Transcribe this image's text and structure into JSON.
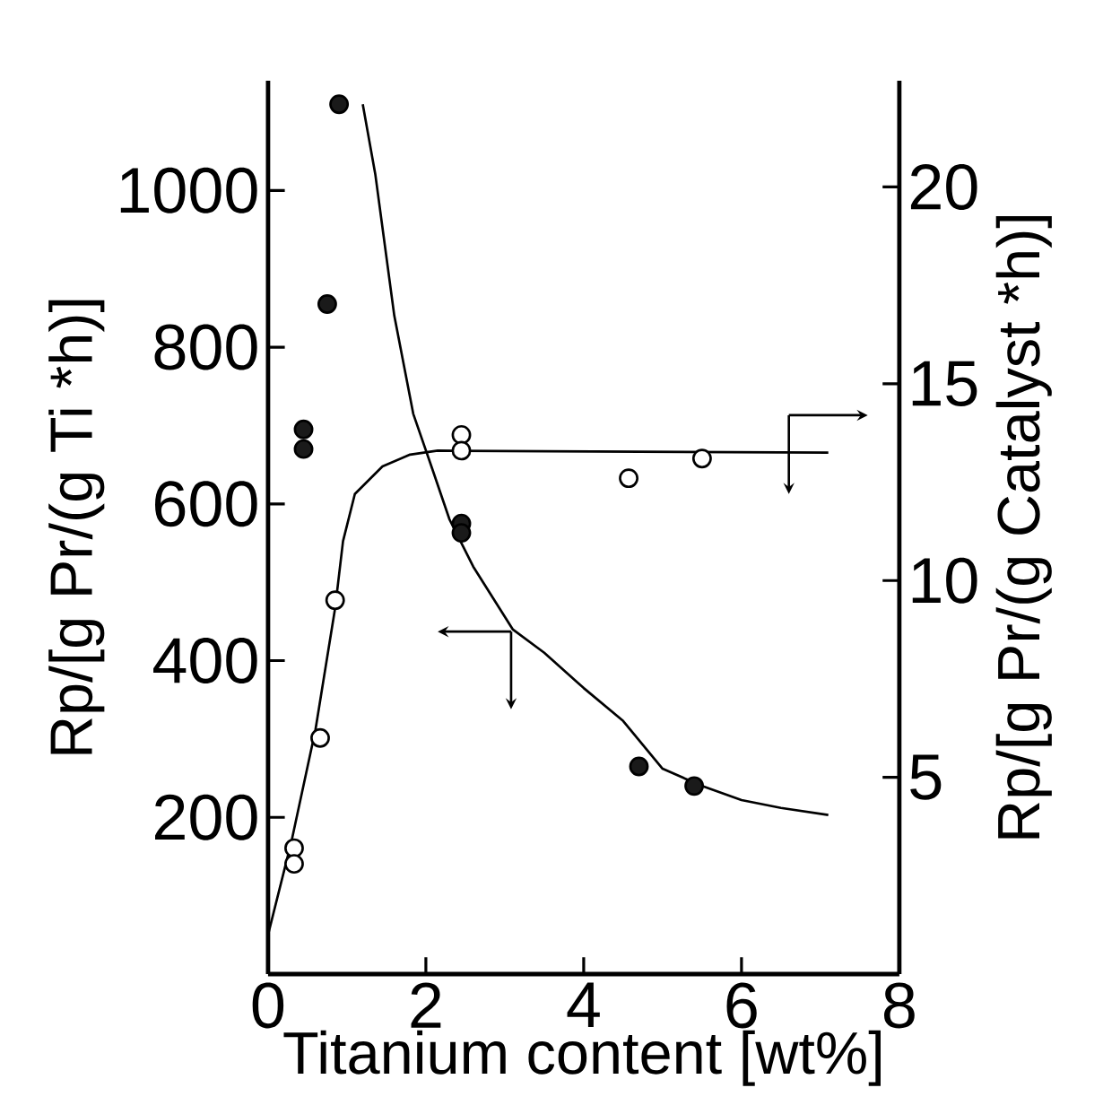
{
  "chart_data": {
    "type": "scatter",
    "xlabel": "Titanium content [wt%]",
    "ylabel": "Rp/[g Pr/(g Ti *h)]",
    "y2label": "Rp/[g Pr/(g Catalyst *h)]",
    "xlim": [
      0,
      8
    ],
    "xticks": [
      0,
      2,
      4,
      6,
      8
    ],
    "ylim": [
      0,
      1140
    ],
    "yticks": [
      200,
      400,
      600,
      800,
      1000
    ],
    "y2lim": [
      0,
      22.7
    ],
    "y2ticks": [
      5,
      10,
      15,
      20
    ],
    "series": [
      {
        "color": "#1a1a1a",
        "marker": "circle",
        "x": [
          0.9,
          0.75,
          0.45,
          0.45,
          2.45,
          2.45,
          4.7,
          5.4
        ],
        "values": [
          1110,
          855,
          695,
          670,
          575,
          563,
          265,
          240
        ]
      },
      {
        "axis": "y2",
        "color": "#ffffff",
        "marker": "circle",
        "x": [
          0.33,
          0.33,
          0.66,
          0.85,
          2.45,
          2.45,
          4.57,
          5.5
        ],
        "values": [
          3.2,
          2.8,
          6.0,
          9.5,
          13.7,
          13.3,
          12.6,
          13.1
        ]
      },
      {
        "type": "line",
        "color": "#000000",
        "marker": "none",
        "line_style": "solid",
        "x": [
          1.2,
          1.36,
          1.6,
          1.84,
          2.08,
          2.3,
          2.6,
          3.1,
          3.5,
          4.0,
          4.5,
          5.0,
          5.5,
          6.0,
          6.5,
          7.1
        ],
        "values": [
          1110,
          1020,
          840,
          715,
          645,
          580,
          520,
          440,
          410,
          365,
          323,
          262,
          240,
          222,
          212,
          203
        ]
      },
      {
        "type": "line",
        "axis": "y2",
        "color": "#000000",
        "marker": "none",
        "line_style": "solid",
        "x": [
          0,
          0.3,
          0.6,
          0.85,
          0.95,
          1.1,
          1.45,
          1.8,
          2.15,
          7.1
        ],
        "values": [
          1.0,
          3.4,
          6.2,
          9.3,
          11.0,
          12.2,
          12.9,
          13.2,
          13.3,
          13.25
        ]
      }
    ]
  }
}
